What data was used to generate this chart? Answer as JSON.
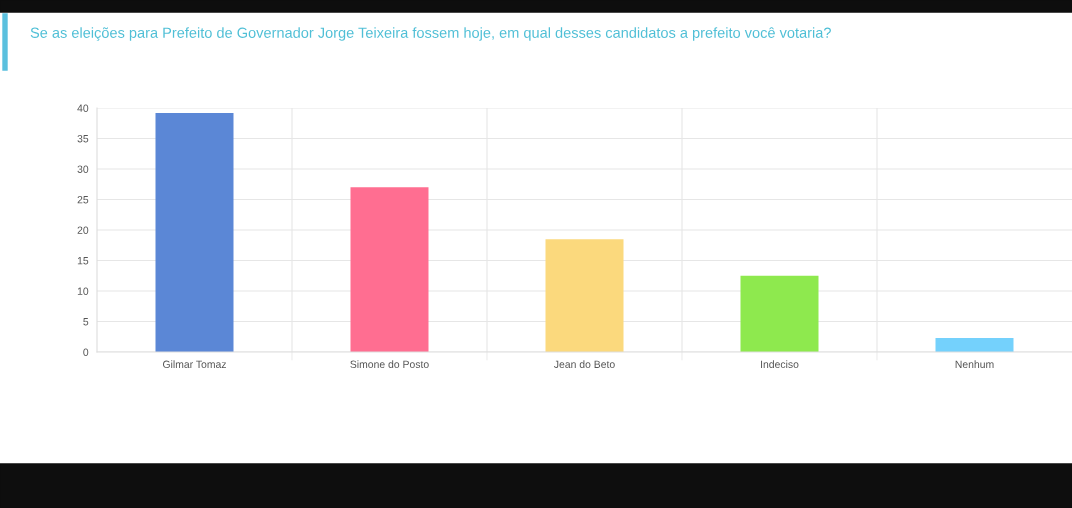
{
  "chart_data": {
    "type": "bar",
    "title": "Se as eleições para Prefeito de Governador Jorge Teixeira fossem hoje, em qual desses candidatos a prefeito você votaria?",
    "categories": [
      "Gilmar Tomaz",
      "Simone do Posto",
      "Jean do Beto",
      "Indeciso",
      "Nenhum"
    ],
    "values": [
      39.2,
      27.0,
      18.5,
      12.5,
      2.3
    ],
    "colors": [
      "#5b87d6",
      "#ff6e91",
      "#fbd97d",
      "#8ee94e",
      "#74d1fc"
    ],
    "ylim": [
      0,
      40
    ],
    "yticks": [
      0,
      5,
      10,
      15,
      20,
      25,
      30,
      35,
      40
    ],
    "grid": true
  }
}
